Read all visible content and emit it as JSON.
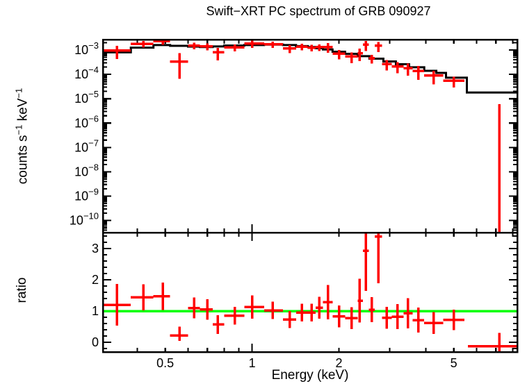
{
  "title": "Swift−XRT PC spectrum of GRB 090927",
  "colors": {
    "data": "#ff0000",
    "model": "#000000",
    "reference_line": "#00ff00",
    "frame": "#000000",
    "background": "#ffffff"
  },
  "axes": {
    "x": {
      "label": "Energy (keV)",
      "scale": "log",
      "min": 0.304,
      "max": 8.3,
      "labeled_ticks": [
        {
          "value": 0.5,
          "label": "0.5"
        },
        {
          "value": 1,
          "label": "1"
        },
        {
          "value": 2,
          "label": "2"
        },
        {
          "value": 5,
          "label": "5"
        }
      ],
      "decade_ticks": [
        1
      ]
    },
    "y_spectrum": {
      "label_parts": [
        "counts s",
        "−1",
        " keV",
        "−1"
      ],
      "scale": "log",
      "min": 3.2e-11,
      "max": 0.00268,
      "labeled_exponents": [
        -3,
        -4,
        -5,
        -6,
        -7,
        -8,
        -9,
        -10
      ],
      "exponent_base": "10",
      "minus_sign": "−"
    },
    "y_ratio": {
      "label": "ratio",
      "scale": "linear",
      "min": -0.31,
      "max": 3.51,
      "labeled_ticks": [
        0,
        1,
        2,
        3
      ],
      "minor_step": 0.2
    }
  },
  "chart_data": [
    {
      "type": "scatter",
      "name": "spectrum",
      "title": "Swift−XRT PC spectrum of GRB 090927",
      "xlabel": "Energy (keV)",
      "ylabel": "counts s^−1 keV^−1",
      "xscale": "log",
      "yscale": "log",
      "xlim": [
        0.304,
        8.3
      ],
      "ylim": [
        3.2e-11,
        0.00268
      ],
      "grid": false,
      "legend": false,
      "series_note": "points columns: [E, E_lo, E_hi, value, value_lo, value_hi]; model_steps columns: [E_lo, E_hi, value]",
      "points": [
        [
          0.34,
          0.304,
          0.38,
          0.00096,
          0.00042,
          0.0015
        ],
        [
          0.42,
          0.38,
          0.455,
          0.0018,
          0.00127,
          0.00233
        ],
        [
          0.49,
          0.455,
          0.52,
          0.00235,
          0.00165,
          0.00305
        ],
        [
          0.56,
          0.52,
          0.6,
          0.00033,
          6.5e-05,
          0.00074
        ],
        [
          0.63,
          0.6,
          0.66,
          0.00152,
          0.00106,
          0.00198
        ],
        [
          0.7,
          0.66,
          0.73,
          0.0014,
          0.00096,
          0.00184
        ],
        [
          0.76,
          0.73,
          0.8,
          0.0008,
          0.00038,
          0.00122
        ],
        [
          0.87,
          0.8,
          0.94,
          0.00129,
          0.00087,
          0.00171
        ],
        [
          1.0,
          0.94,
          1.1,
          0.00181,
          0.00121,
          0.00241
        ],
        [
          1.18,
          1.1,
          1.28,
          0.0017,
          0.00123,
          0.00217
        ],
        [
          1.35,
          1.28,
          1.42,
          0.00117,
          0.00074,
          0.0016
        ],
        [
          1.49,
          1.42,
          1.56,
          0.00138,
          0.00097,
          0.00179
        ],
        [
          1.61,
          1.56,
          1.66,
          0.00125,
          0.00088,
          0.00162
        ],
        [
          1.71,
          1.66,
          1.76,
          0.00131,
          0.0009,
          0.00172
        ],
        [
          1.83,
          1.76,
          1.9,
          0.00134,
          0.00077,
          0.00191
        ],
        [
          2.0,
          1.9,
          2.1,
          0.00071,
          0.00041,
          0.00101
        ],
        [
          2.21,
          2.1,
          2.32,
          0.00054,
          0.00029,
          0.00079
        ],
        [
          2.36,
          2.32,
          2.42,
          0.00074,
          0.00035,
          0.00113
        ],
        [
          2.48,
          2.42,
          2.54,
          0.00164,
          0.00092,
          0.00236
        ],
        [
          2.6,
          2.54,
          2.66,
          0.00046,
          0.00028,
          0.00064
        ],
        [
          2.74,
          2.66,
          2.82,
          0.00149,
          0.00083,
          0.00215
        ],
        [
          2.93,
          2.82,
          3.05,
          0.000265,
          0.000145,
          0.000385
        ],
        [
          3.19,
          3.05,
          3.35,
          0.000213,
          0.00011,
          0.00032
        ],
        [
          3.47,
          3.35,
          3.6,
          0.000181,
          8.8e-05,
          0.000275
        ],
        [
          3.77,
          3.6,
          3.95,
          0.000138,
          6e-05,
          0.00022
        ],
        [
          4.26,
          3.95,
          4.6,
          9e-05,
          3.9e-05,
          0.00014
        ],
        [
          5.0,
          4.6,
          5.45,
          5.4e-05,
          2.9e-05,
          7.9e-05
        ]
      ],
      "unconstrained_bar": {
        "e": 7.2,
        "vlo": 3.2e-11,
        "vhi": 6e-06
      },
      "model_steps": [
        [
          0.304,
          0.38,
          0.0008
        ],
        [
          0.38,
          0.455,
          0.00125
        ],
        [
          0.455,
          0.52,
          0.0016
        ],
        [
          0.52,
          0.6,
          0.00148
        ],
        [
          0.6,
          0.66,
          0.00138
        ],
        [
          0.66,
          0.73,
          0.00133
        ],
        [
          0.73,
          0.8,
          0.0014
        ],
        [
          0.8,
          0.94,
          0.00152
        ],
        [
          0.94,
          1.1,
          0.0016
        ],
        [
          1.1,
          1.28,
          0.00166
        ],
        [
          1.28,
          1.42,
          0.0016
        ],
        [
          1.42,
          1.56,
          0.00145
        ],
        [
          1.56,
          1.66,
          0.00132
        ],
        [
          1.66,
          1.76,
          0.00118
        ],
        [
          1.76,
          1.9,
          0.00105
        ],
        [
          1.9,
          2.1,
          0.00085
        ],
        [
          2.1,
          2.32,
          0.0007
        ],
        [
          2.32,
          2.55,
          0.00056
        ],
        [
          2.55,
          2.85,
          0.00044
        ],
        [
          2.85,
          3.15,
          0.00034
        ],
        [
          3.15,
          3.5,
          0.00026
        ],
        [
          3.5,
          3.95,
          0.000195
        ],
        [
          3.95,
          4.35,
          0.00014
        ],
        [
          4.35,
          4.7,
          0.000115
        ],
        [
          4.7,
          5.55,
          7.3e-05
        ],
        [
          5.55,
          8.3,
          1.8e-05
        ]
      ]
    },
    {
      "type": "scatter",
      "name": "ratio",
      "xlabel": "Energy (keV)",
      "ylabel": "ratio",
      "xscale": "log",
      "yscale": "linear",
      "xlim": [
        0.304,
        8.3
      ],
      "ylim": [
        -0.31,
        3.51
      ],
      "reference_line": 1.0,
      "series_note": "points columns: [E, E_lo, E_hi, ratio, ratio_lo, ratio_hi]",
      "points": [
        [
          0.34,
          0.304,
          0.38,
          1.2,
          0.53,
          1.87
        ],
        [
          0.42,
          0.38,
          0.455,
          1.44,
          1.02,
          1.86
        ],
        [
          0.49,
          0.455,
          0.52,
          1.47,
          1.03,
          1.91
        ],
        [
          0.56,
          0.52,
          0.6,
          0.22,
          0.04,
          0.5
        ],
        [
          0.63,
          0.6,
          0.66,
          1.1,
          0.77,
          1.43
        ],
        [
          0.7,
          0.66,
          0.73,
          1.05,
          0.72,
          1.38
        ],
        [
          0.76,
          0.73,
          0.8,
          0.57,
          0.27,
          0.87
        ],
        [
          0.87,
          0.8,
          0.94,
          0.85,
          0.57,
          1.13
        ],
        [
          1.0,
          0.94,
          1.1,
          1.13,
          0.76,
          1.5
        ],
        [
          1.18,
          1.1,
          1.28,
          1.02,
          0.74,
          1.3
        ],
        [
          1.35,
          1.28,
          1.42,
          0.73,
          0.46,
          1.0
        ],
        [
          1.49,
          1.42,
          1.56,
          0.95,
          0.67,
          1.23
        ],
        [
          1.61,
          1.56,
          1.66,
          0.95,
          0.67,
          1.23
        ],
        [
          1.71,
          1.66,
          1.76,
          1.11,
          0.76,
          1.46
        ],
        [
          1.83,
          1.76,
          1.9,
          1.28,
          0.73,
          1.83
        ],
        [
          2.0,
          1.9,
          2.1,
          0.83,
          0.48,
          1.18
        ],
        [
          2.21,
          2.1,
          2.32,
          0.77,
          0.42,
          1.12
        ],
        [
          2.36,
          2.32,
          2.42,
          1.33,
          0.63,
          2.03
        ],
        [
          2.48,
          2.42,
          2.54,
          2.93,
          1.64,
          4.2
        ],
        [
          2.6,
          2.54,
          2.66,
          1.04,
          0.64,
          1.44
        ],
        [
          2.74,
          2.66,
          2.82,
          3.38,
          1.89,
          4.9
        ],
        [
          2.93,
          2.82,
          3.05,
          0.78,
          0.43,
          1.13
        ],
        [
          3.19,
          3.05,
          3.35,
          0.82,
          0.42,
          1.22
        ],
        [
          3.47,
          3.35,
          3.6,
          0.93,
          0.45,
          1.41
        ],
        [
          3.77,
          3.6,
          3.95,
          0.71,
          0.31,
          1.11
        ],
        [
          4.26,
          3.95,
          4.6,
          0.62,
          0.27,
          0.97
        ],
        [
          5.0,
          4.6,
          5.45,
          0.72,
          0.39,
          1.05
        ],
        [
          7.2,
          5.6,
          8.3,
          -0.13,
          -0.36,
          0.3
        ]
      ]
    }
  ]
}
